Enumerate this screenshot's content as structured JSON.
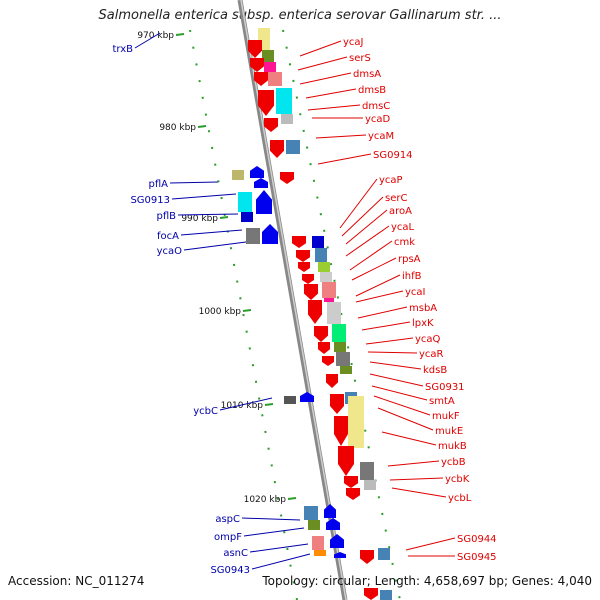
{
  "title": "Salmonella enterica subsp. enterica serovar Gallinarum str. ...",
  "footer": {
    "accession": "Accession: NC_011274",
    "topology": "Topology: circular; Length: 4,658,697 bp; Genes: 4,040"
  },
  "colors": {
    "axis": "#999999",
    "forward_label": "#0000aa",
    "reverse_label": "#e00000",
    "tick": "#228b22"
  },
  "kbp_ticks": [
    "970 kbp",
    "980 kbp",
    "990 kbp",
    "1000 kbp",
    "1010 kbp",
    "1020 kbp"
  ],
  "forward_genes": [
    "trxB",
    "pflA",
    "SG0913",
    "pflB",
    "focA",
    "ycaO",
    "ycbC",
    "aspC",
    "ompF",
    "asnC",
    "SG0943"
  ],
  "reverse_genes": [
    "ycaJ",
    "serS",
    "dmsA",
    "dmsB",
    "dmsC",
    "ycaD",
    "ycaM",
    "SG0914",
    "ycaP",
    "serC",
    "aroA",
    "ycaL",
    "cmk",
    "rpsA",
    "ihfB",
    "ycaI",
    "msbA",
    "lpxK",
    "ycaQ",
    "ycaR",
    "kdsB",
    "SG0931",
    "smtA",
    "mukF",
    "mukE",
    "mukB",
    "ycbB",
    "ycbK",
    "ycbL",
    "SG0944",
    "SG0945"
  ]
}
